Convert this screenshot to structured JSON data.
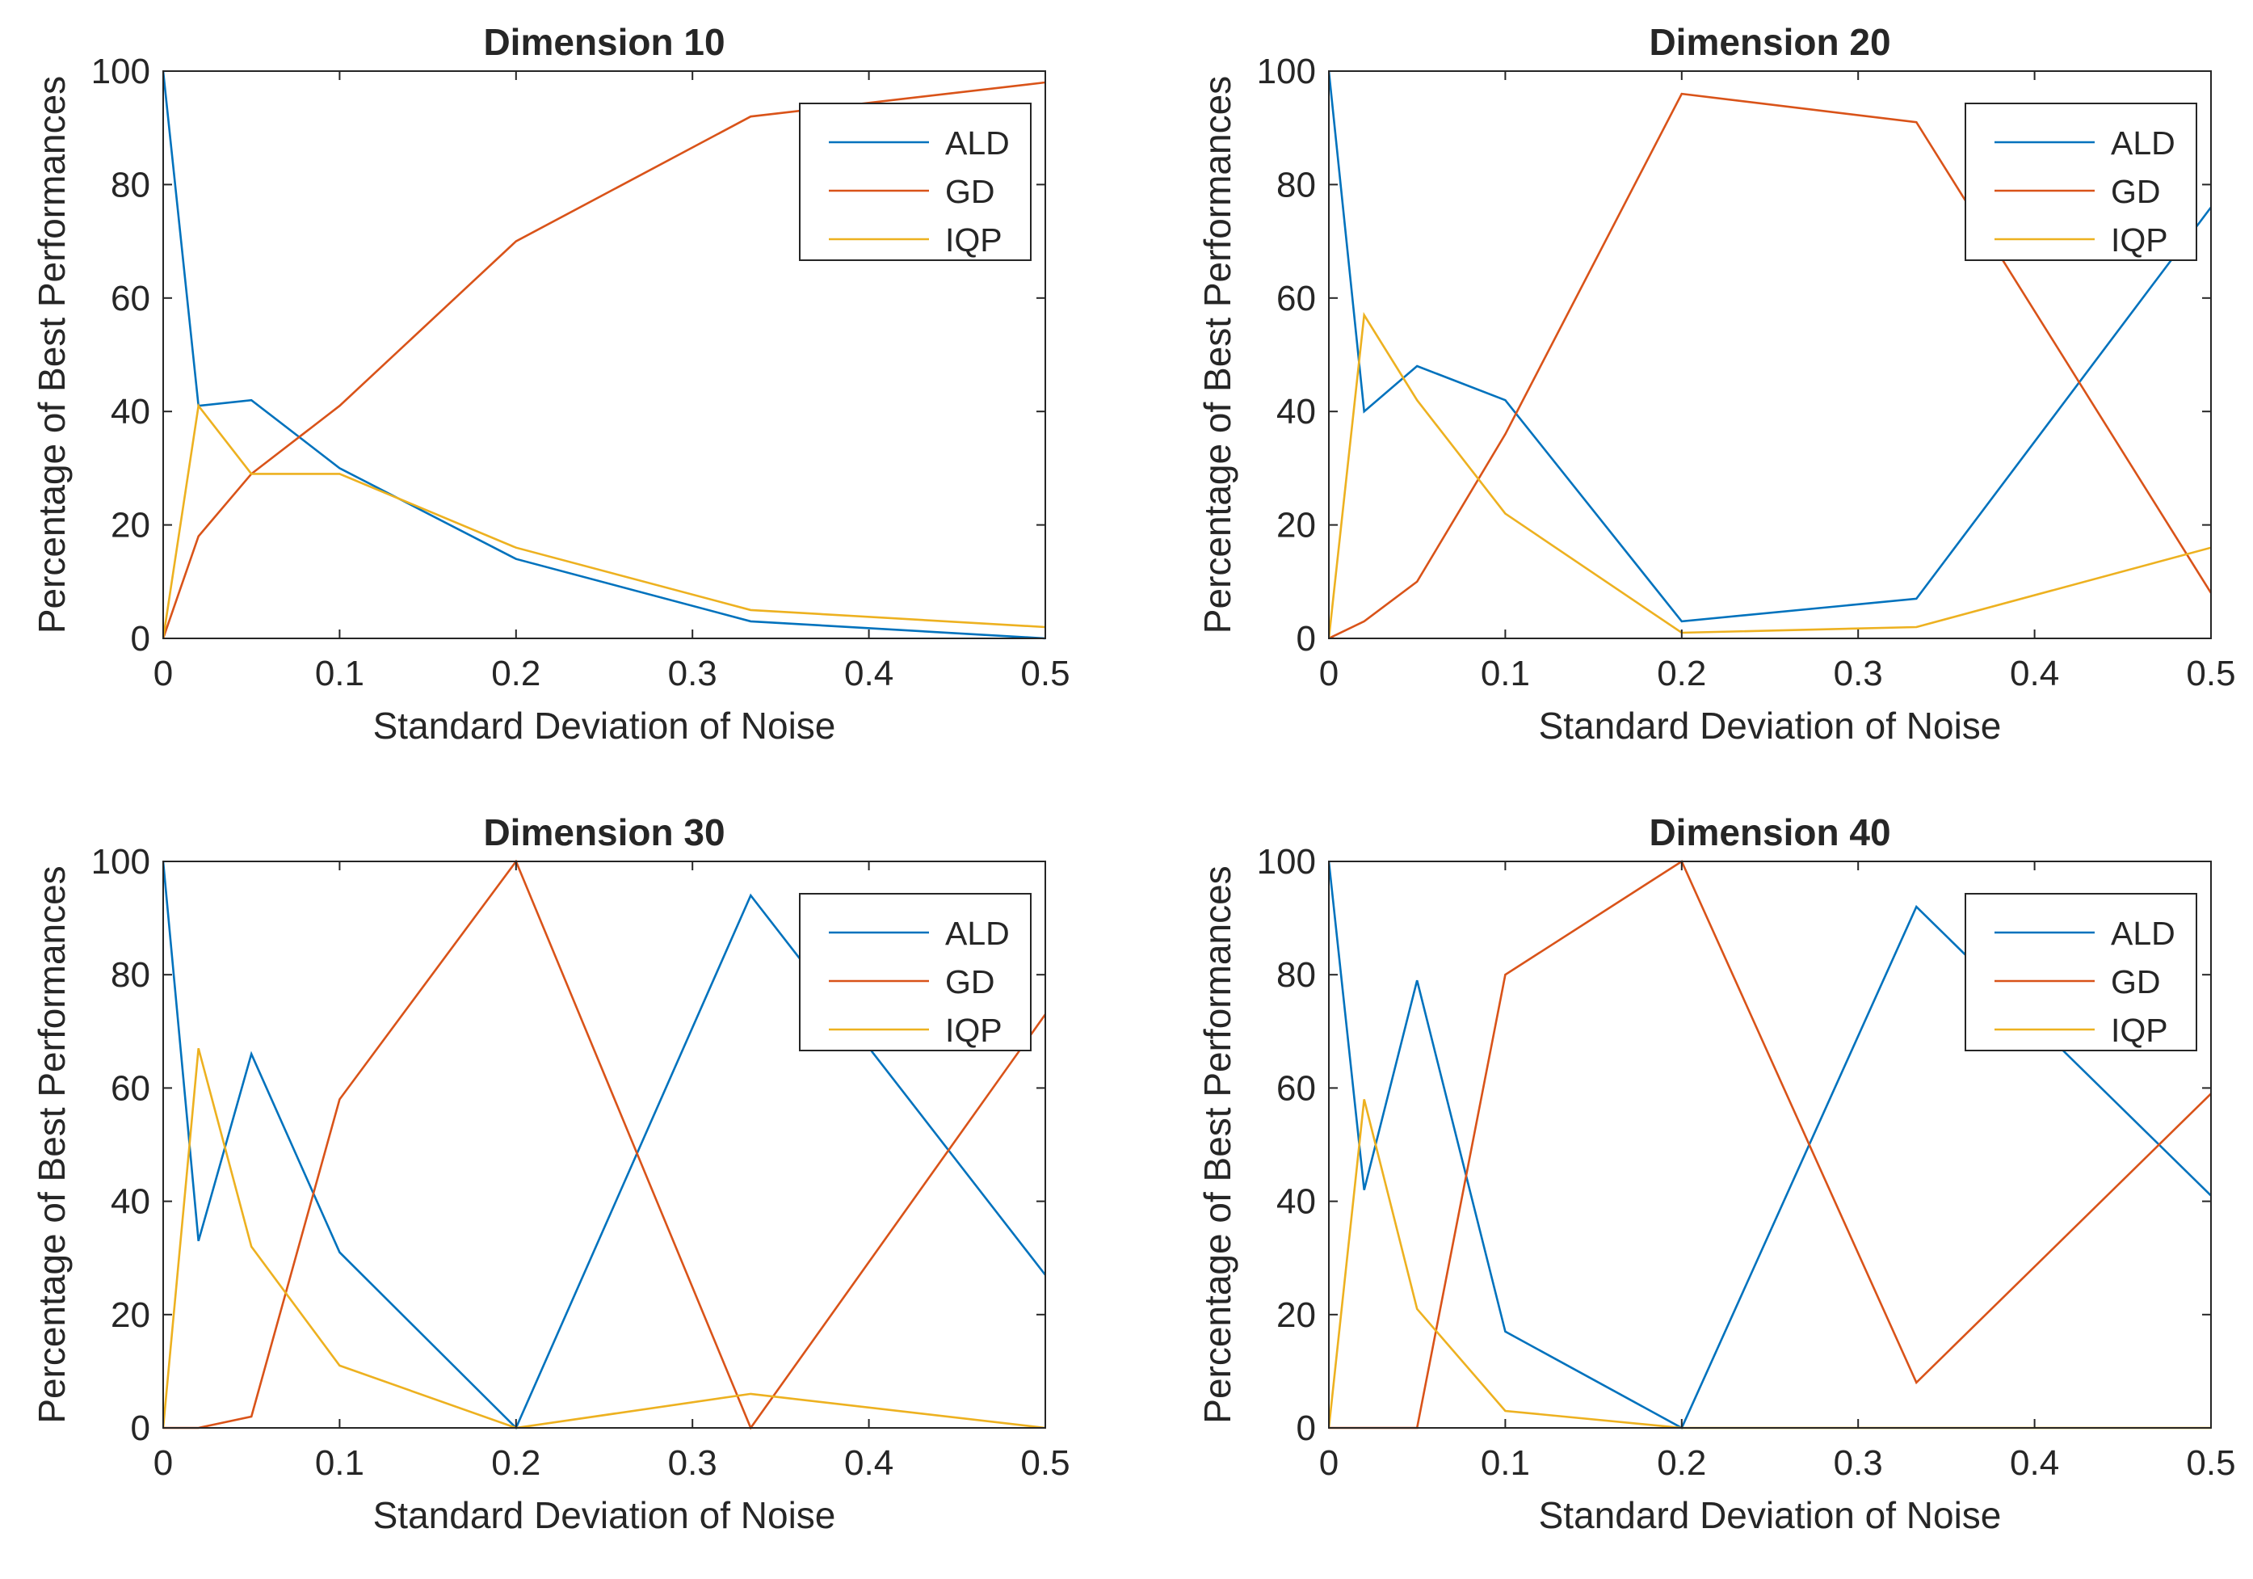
{
  "colors": {
    "ALD": "#0072BD",
    "GD": "#D95319",
    "IQP": "#EDB120",
    "axis": "#262626"
  },
  "chart_data": [
    {
      "type": "line",
      "title": "Dimension 10",
      "xlabel": "Standard Deviation of Noise",
      "ylabel": "Percentage of Best Performances",
      "xlim": [
        0,
        0.5
      ],
      "ylim": [
        0,
        100
      ],
      "xticks": [
        0,
        0.1,
        0.2,
        0.3,
        0.4,
        0.5
      ],
      "xtick_labels": [
        "0",
        "0.1",
        "0.2",
        "0.3",
        "0.4",
        "0.5"
      ],
      "yticks": [
        0,
        20,
        40,
        60,
        80,
        100
      ],
      "ytick_labels": [
        "0",
        "20",
        "40",
        "60",
        "80",
        "100"
      ],
      "legend_location": "top-right",
      "x": [
        0,
        0.02,
        0.05,
        0.1,
        0.2,
        0.333,
        0.5
      ],
      "series": [
        {
          "name": "ALD",
          "values": [
            100,
            41,
            42,
            30,
            14,
            3,
            0
          ]
        },
        {
          "name": "GD",
          "values": [
            0,
            18,
            29,
            41,
            70,
            92,
            98
          ]
        },
        {
          "name": "IQP",
          "values": [
            0,
            41,
            29,
            29,
            16,
            5,
            2
          ]
        }
      ]
    },
    {
      "type": "line",
      "title": "Dimension 20",
      "xlabel": "Standard Deviation of Noise",
      "ylabel": "Percentage of Best Performances",
      "xlim": [
        0,
        0.5
      ],
      "ylim": [
        0,
        100
      ],
      "xticks": [
        0,
        0.1,
        0.2,
        0.3,
        0.4,
        0.5
      ],
      "xtick_labels": [
        "0",
        "0.1",
        "0.2",
        "0.3",
        "0.4",
        "0.5"
      ],
      "yticks": [
        0,
        20,
        40,
        60,
        80,
        100
      ],
      "ytick_labels": [
        "0",
        "20",
        "40",
        "60",
        "80",
        "100"
      ],
      "legend_location": "top-right",
      "x": [
        0,
        0.02,
        0.05,
        0.1,
        0.2,
        0.333,
        0.5
      ],
      "series": [
        {
          "name": "ALD",
          "values": [
            100,
            40,
            48,
            42,
            3,
            7,
            76
          ]
        },
        {
          "name": "GD",
          "values": [
            0,
            3,
            10,
            36,
            96,
            91,
            8
          ]
        },
        {
          "name": "IQP",
          "values": [
            0,
            57,
            42,
            22,
            1,
            2,
            16
          ]
        }
      ]
    },
    {
      "type": "line",
      "title": "Dimension 30",
      "xlabel": "Standard Deviation of Noise",
      "ylabel": "Percentage of Best Performances",
      "xlim": [
        0,
        0.5
      ],
      "ylim": [
        0,
        100
      ],
      "xticks": [
        0,
        0.1,
        0.2,
        0.3,
        0.4,
        0.5
      ],
      "xtick_labels": [
        "0",
        "0.1",
        "0.2",
        "0.3",
        "0.4",
        "0.5"
      ],
      "yticks": [
        0,
        20,
        40,
        60,
        80,
        100
      ],
      "ytick_labels": [
        "0",
        "20",
        "40",
        "60",
        "80",
        "100"
      ],
      "legend_location": "top-right",
      "x": [
        0,
        0.02,
        0.05,
        0.1,
        0.2,
        0.333,
        0.5
      ],
      "series": [
        {
          "name": "ALD",
          "values": [
            100,
            33,
            66,
            31,
            0,
            94,
            27
          ]
        },
        {
          "name": "GD",
          "values": [
            0,
            0,
            2,
            58,
            100,
            0,
            73
          ]
        },
        {
          "name": "IQP",
          "values": [
            0,
            67,
            32,
            11,
            0,
            6,
            0
          ]
        }
      ]
    },
    {
      "type": "line",
      "title": "Dimension 40",
      "xlabel": "Standard Deviation of Noise",
      "ylabel": "Percentage of Best Performances",
      "xlim": [
        0,
        0.5
      ],
      "ylim": [
        0,
        100
      ],
      "xticks": [
        0,
        0.1,
        0.2,
        0.3,
        0.4,
        0.5
      ],
      "xtick_labels": [
        "0",
        "0.1",
        "0.2",
        "0.3",
        "0.4",
        "0.5"
      ],
      "yticks": [
        0,
        20,
        40,
        60,
        80,
        100
      ],
      "ytick_labels": [
        "0",
        "20",
        "40",
        "60",
        "80",
        "100"
      ],
      "legend_location": "top-right",
      "x": [
        0,
        0.02,
        0.05,
        0.1,
        0.2,
        0.333,
        0.5
      ],
      "series": [
        {
          "name": "ALD",
          "values": [
            100,
            42,
            79,
            17,
            0,
            92,
            41
          ]
        },
        {
          "name": "GD",
          "values": [
            0,
            0,
            0,
            80,
            100,
            8,
            59
          ]
        },
        {
          "name": "IQP",
          "values": [
            0,
            58,
            21,
            3,
            0,
            0,
            0
          ]
        }
      ]
    }
  ]
}
